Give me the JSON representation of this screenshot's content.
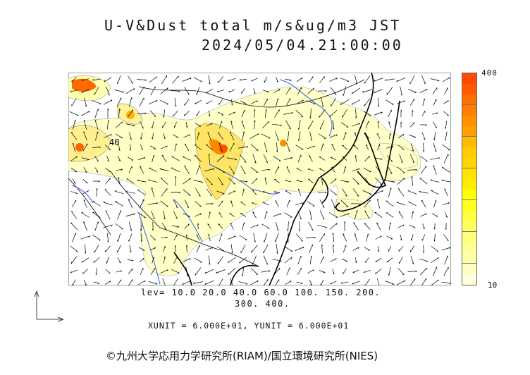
{
  "title": {
    "line1": "U-V&Dust total m/s&ug/m3 JST",
    "line2": "2024/05/04.21:00:00"
  },
  "colorbar": {
    "max_label": "400",
    "min_label": "10",
    "colors": [
      "#ff4a00",
      "#ff5a00",
      "#ff6e00",
      "#ff7d00",
      "#ff9000",
      "#ffa000",
      "#ffbb00",
      "#ffcc00",
      "#ffd400",
      "#ffe400",
      "#ffec00",
      "#ffff00",
      "#ffff22",
      "#ffff44",
      "#ffff60",
      "#ffff7a",
      "#ffff95",
      "#ffffaa",
      "#ffffc4",
      "#ffffdd"
    ]
  },
  "map_label": "40",
  "levels": {
    "line1": "lev= 10.0 20.0 40.0 60.0 100. 150. 200.",
    "line2": "300. 400."
  },
  "units": "XUNIT = 6.000E+01, YUNIT = 6.000E+01",
  "credit": "©九州大学応用力学研究所(RIAM)/国立環境研究所(NIES)"
}
